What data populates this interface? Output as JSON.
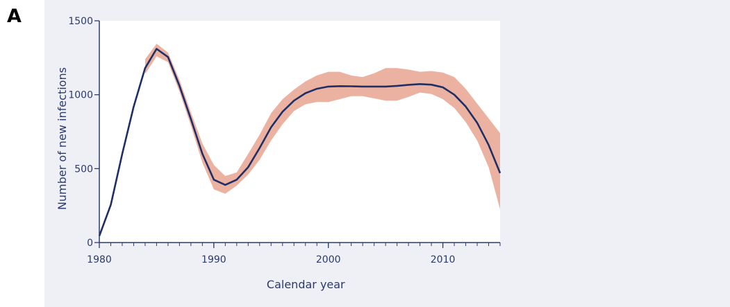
{
  "panel_label": "A",
  "colors": {
    "line": "#1f2f66",
    "band": "#e9a590",
    "axis": "#2b3a6b",
    "plot_bg": "#ffffff",
    "page_bg": "#eef0f5"
  },
  "chart_data": {
    "type": "line",
    "title": "",
    "xlabel": "Calendar year",
    "ylabel": "Number of new infections",
    "xlim": [
      1980,
      2015
    ],
    "ylim": [
      0,
      1500
    ],
    "xticks": [
      1980,
      1990,
      2000,
      2010
    ],
    "xtick_labels": [
      "1980",
      "1990",
      "2000",
      "2010"
    ],
    "yticks": [
      0,
      500,
      1000,
      1500
    ],
    "ytick_labels": [
      "0",
      "500",
      "1000",
      "1500"
    ],
    "x_minor_ticks_every": 1,
    "grid": false,
    "legend": "none",
    "series": [
      {
        "kind": "line",
        "x": [
          1980,
          1981,
          1982,
          1983,
          1984,
          1985,
          1986,
          1987,
          1988,
          1989,
          1990,
          1991,
          1992,
          1993,
          1994,
          1995,
          1996,
          1997,
          1998,
          1999,
          2000,
          2001,
          2002,
          2003,
          2004,
          2005,
          2006,
          2007,
          2008,
          2009,
          2010,
          2011,
          2012,
          2013,
          2014,
          2015
        ],
        "y": [
          45,
          255,
          600,
          920,
          1180,
          1310,
          1255,
          1060,
          835,
          600,
          425,
          390,
          425,
          510,
          640,
          780,
          885,
          960,
          1010,
          1040,
          1055,
          1058,
          1057,
          1055,
          1055,
          1055,
          1060,
          1067,
          1072,
          1068,
          1050,
          1000,
          920,
          810,
          660,
          470
        ]
      },
      {
        "kind": "band",
        "x": [
          1984,
          1985,
          1986,
          1987,
          1988,
          1989,
          1990,
          1991,
          1992,
          1993,
          1994,
          1995,
          1996,
          1997,
          1998,
          1999,
          2000,
          2001,
          2002,
          2003,
          2004,
          2005,
          2006,
          2007,
          2008,
          2009,
          2010,
          2011,
          2012,
          2013,
          2014,
          2015
        ],
        "upper": [
          1240,
          1345,
          1285,
          1100,
          880,
          670,
          525,
          450,
          475,
          600,
          730,
          875,
          970,
          1035,
          1090,
          1130,
          1155,
          1155,
          1130,
          1120,
          1145,
          1180,
          1180,
          1170,
          1155,
          1160,
          1150,
          1120,
          1040,
          940,
          840,
          740
        ],
        "lower": [
          1140,
          1260,
          1220,
          1020,
          790,
          540,
          360,
          330,
          385,
          460,
          560,
          690,
          800,
          890,
          935,
          950,
          950,
          970,
          990,
          990,
          975,
          960,
          960,
          985,
          1015,
          1005,
          970,
          910,
          815,
          690,
          510,
          225
        ]
      }
    ]
  }
}
